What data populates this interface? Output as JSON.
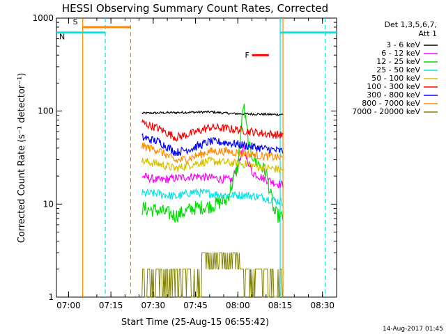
{
  "chart_data": {
    "type": "line",
    "title": "HESSI Observing Summary Count Rates, Corrected",
    "xlabel": "Start Time (25-Aug-15 06:55:42)",
    "ylabel": "Corrected Count Rate (s⁻¹ detector⁻¹)",
    "y_scale": "log",
    "ylim": [
      1,
      1000
    ],
    "xlim": [
      "06:55:42",
      "08:35:00"
    ],
    "x_ticks": [
      "07:00",
      "07:15",
      "07:30",
      "07:45",
      "08:00",
      "08:15",
      "08:30"
    ],
    "y_ticks": [
      "1",
      "10",
      "100",
      "1000"
    ],
    "legend_header": [
      "Det 1,3,5,6,7,",
      "Att 1"
    ],
    "legend_position": "right",
    "timestamp": "14-Aug-2017 01:45",
    "data_window": [
      "07:26",
      "08:16"
    ],
    "series": [
      {
        "name": "3 - 6 keV",
        "color": "#000000",
        "x": [
          "07:26",
          "07:35",
          "07:42",
          "07:50",
          "07:58",
          "08:06",
          "08:12",
          "08:16"
        ],
        "values": [
          95,
          96,
          97,
          98,
          94,
          93,
          92,
          92
        ]
      },
      {
        "name": "6 - 12 keV",
        "color": "#ff00ff",
        "x": [
          "07:26",
          "07:32",
          "07:38",
          "07:45",
          "07:52",
          "07:58",
          "08:02",
          "08:05",
          "08:09",
          "08:13",
          "08:16"
        ],
        "values": [
          20,
          18,
          19,
          20,
          19,
          18,
          40,
          22,
          19,
          17,
          16
        ]
      },
      {
        "name": "12 - 25 keV",
        "color": "#00dd00",
        "x": [
          "07:26",
          "07:32",
          "07:38",
          "07:44",
          "07:50",
          "07:56",
          "08:00",
          "08:02",
          "08:04",
          "08:06",
          "08:10",
          "08:13",
          "08:16"
        ],
        "values": [
          9,
          8.5,
          7.5,
          9,
          9.5,
          11,
          25,
          120,
          40,
          30,
          22,
          8,
          7
        ]
      },
      {
        "name": "25 - 50 keV",
        "color": "#00e5e5",
        "x": [
          "07:26",
          "07:32",
          "07:38",
          "07:44",
          "07:50",
          "07:56",
          "08:02",
          "08:08",
          "08:13",
          "08:16"
        ],
        "values": [
          13,
          13,
          12,
          13.5,
          13,
          12.5,
          12.5,
          12,
          11,
          10.5
        ]
      },
      {
        "name": "50 - 100 keV",
        "color": "#d4c000",
        "x": [
          "07:26",
          "07:32",
          "07:38",
          "07:44",
          "07:50",
          "07:56",
          "08:02",
          "08:08",
          "08:13",
          "08:16"
        ],
        "values": [
          29,
          27,
          24,
          27,
          29,
          28,
          27,
          25,
          24,
          23
        ]
      },
      {
        "name": "100 - 300 keV",
        "color": "#ff0000",
        "x": [
          "07:26",
          "07:32",
          "07:38",
          "07:44",
          "07:50",
          "07:56",
          "08:02",
          "08:08",
          "08:13",
          "08:16"
        ],
        "values": [
          75,
          65,
          52,
          58,
          67,
          65,
          62,
          58,
          56,
          55
        ]
      },
      {
        "name": "300 - 800 keV",
        "color": "#0000ff",
        "x": [
          "07:26",
          "07:32",
          "07:38",
          "07:44",
          "07:50",
          "07:56",
          "08:02",
          "08:08",
          "08:13",
          "08:16"
        ],
        "values": [
          52,
          47,
          36,
          40,
          47,
          46,
          43,
          40,
          38,
          37
        ]
      },
      {
        "name": "800 - 7000 keV",
        "color": "#ff8c00",
        "x": [
          "07:26",
          "07:32",
          "07:38",
          "07:44",
          "07:50",
          "07:56",
          "08:02",
          "08:08",
          "08:13",
          "08:16"
        ],
        "values": [
          42,
          38,
          29,
          32,
          37,
          37,
          35,
          33,
          32,
          31
        ]
      },
      {
        "name": "7000 - 20000 keV",
        "color": "#808000",
        "x": [
          "07:26",
          "07:38",
          "07:50",
          "07:58",
          "08:04",
          "08:10",
          "08:16"
        ],
        "values": [
          1.6,
          1.5,
          2.2,
          2.6,
          1.6,
          1.5,
          1.5
        ]
      }
    ],
    "flags": [
      {
        "label": "S",
        "color": "#ff8c00",
        "type": "bar",
        "x0": "07:05",
        "x1": "07:22",
        "y": 800
      },
      {
        "label": "N",
        "color": "#00e5e5",
        "type": "bar",
        "x0": "06:55:42",
        "x1": "07:13",
        "y": 700
      },
      {
        "label": "",
        "color": "#00e5e5",
        "type": "bar",
        "x0": "08:15",
        "x1": "08:35",
        "y": 700
      },
      {
        "label": "F",
        "color": "#ff0000",
        "type": "bar",
        "x0": "08:05",
        "x1": "08:11",
        "y": 400
      }
    ],
    "vlines": [
      {
        "x": "07:05",
        "color": "#ff8c00",
        "style": "solid"
      },
      {
        "x": "07:13",
        "color": "#00e5e5",
        "style": "dashed"
      },
      {
        "x": "07:22",
        "color": "#ff8c00",
        "style": "dashed"
      },
      {
        "x": "08:15",
        "color": "#00e5e5",
        "style": "solid"
      },
      {
        "x": "08:31",
        "color": "#00e5e5",
        "style": "dashed"
      },
      {
        "x": "08:16",
        "color": "#ff8c00",
        "style": "solid"
      }
    ]
  }
}
